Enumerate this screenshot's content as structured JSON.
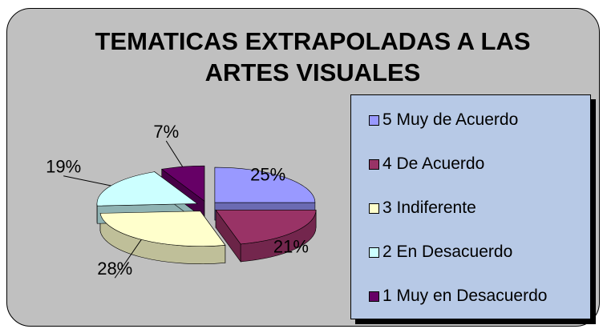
{
  "chart_data": {
    "type": "pie3d",
    "title": "TEMATICAS EXTRAPOLADAS A LAS ARTES VISUALES",
    "categories": [
      "5 Muy de Acuerdo",
      "4 De Acuerdo",
      "3 Indiferente",
      "2 En Desacuerdo",
      "1 Muy en Desacuerdo"
    ],
    "values": [
      25,
      21,
      28,
      19,
      7
    ],
    "value_labels": [
      "25%",
      "21%",
      "28%",
      "19%",
      "7%"
    ],
    "colors": [
      "#9999ff",
      "#993366",
      "#ffffcc",
      "#ccffff",
      "#660066"
    ],
    "legend": "right"
  }
}
